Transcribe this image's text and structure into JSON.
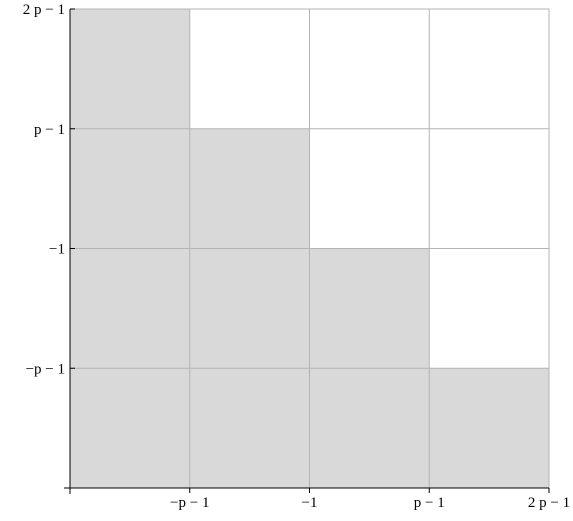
{
  "chart_data": {
    "type": "area",
    "title": "",
    "xlabel": "",
    "ylabel": "",
    "x_ticks": [
      "",
      "−p − 1",
      "−1",
      "p − 1",
      "2 p − 1"
    ],
    "y_ticks": [
      "",
      "−p − 1",
      "−1",
      "p − 1",
      "2 p − 1"
    ],
    "xlim": [
      0,
      4
    ],
    "ylim": [
      0,
      4
    ],
    "grid": true,
    "series": [
      {
        "values": [
          {
            "x": [
              0,
              1
            ],
            "y": 4
          },
          {
            "x": [
              1,
              2
            ],
            "y": 3
          },
          {
            "x": [
              2,
              3
            ],
            "y": 2
          },
          {
            "x": [
              3,
              4
            ],
            "y": 1
          }
        ]
      }
    ],
    "fill_color": "#d9d9d9",
    "grid_color": "#b4b4b4",
    "axis_color": "#000000"
  }
}
